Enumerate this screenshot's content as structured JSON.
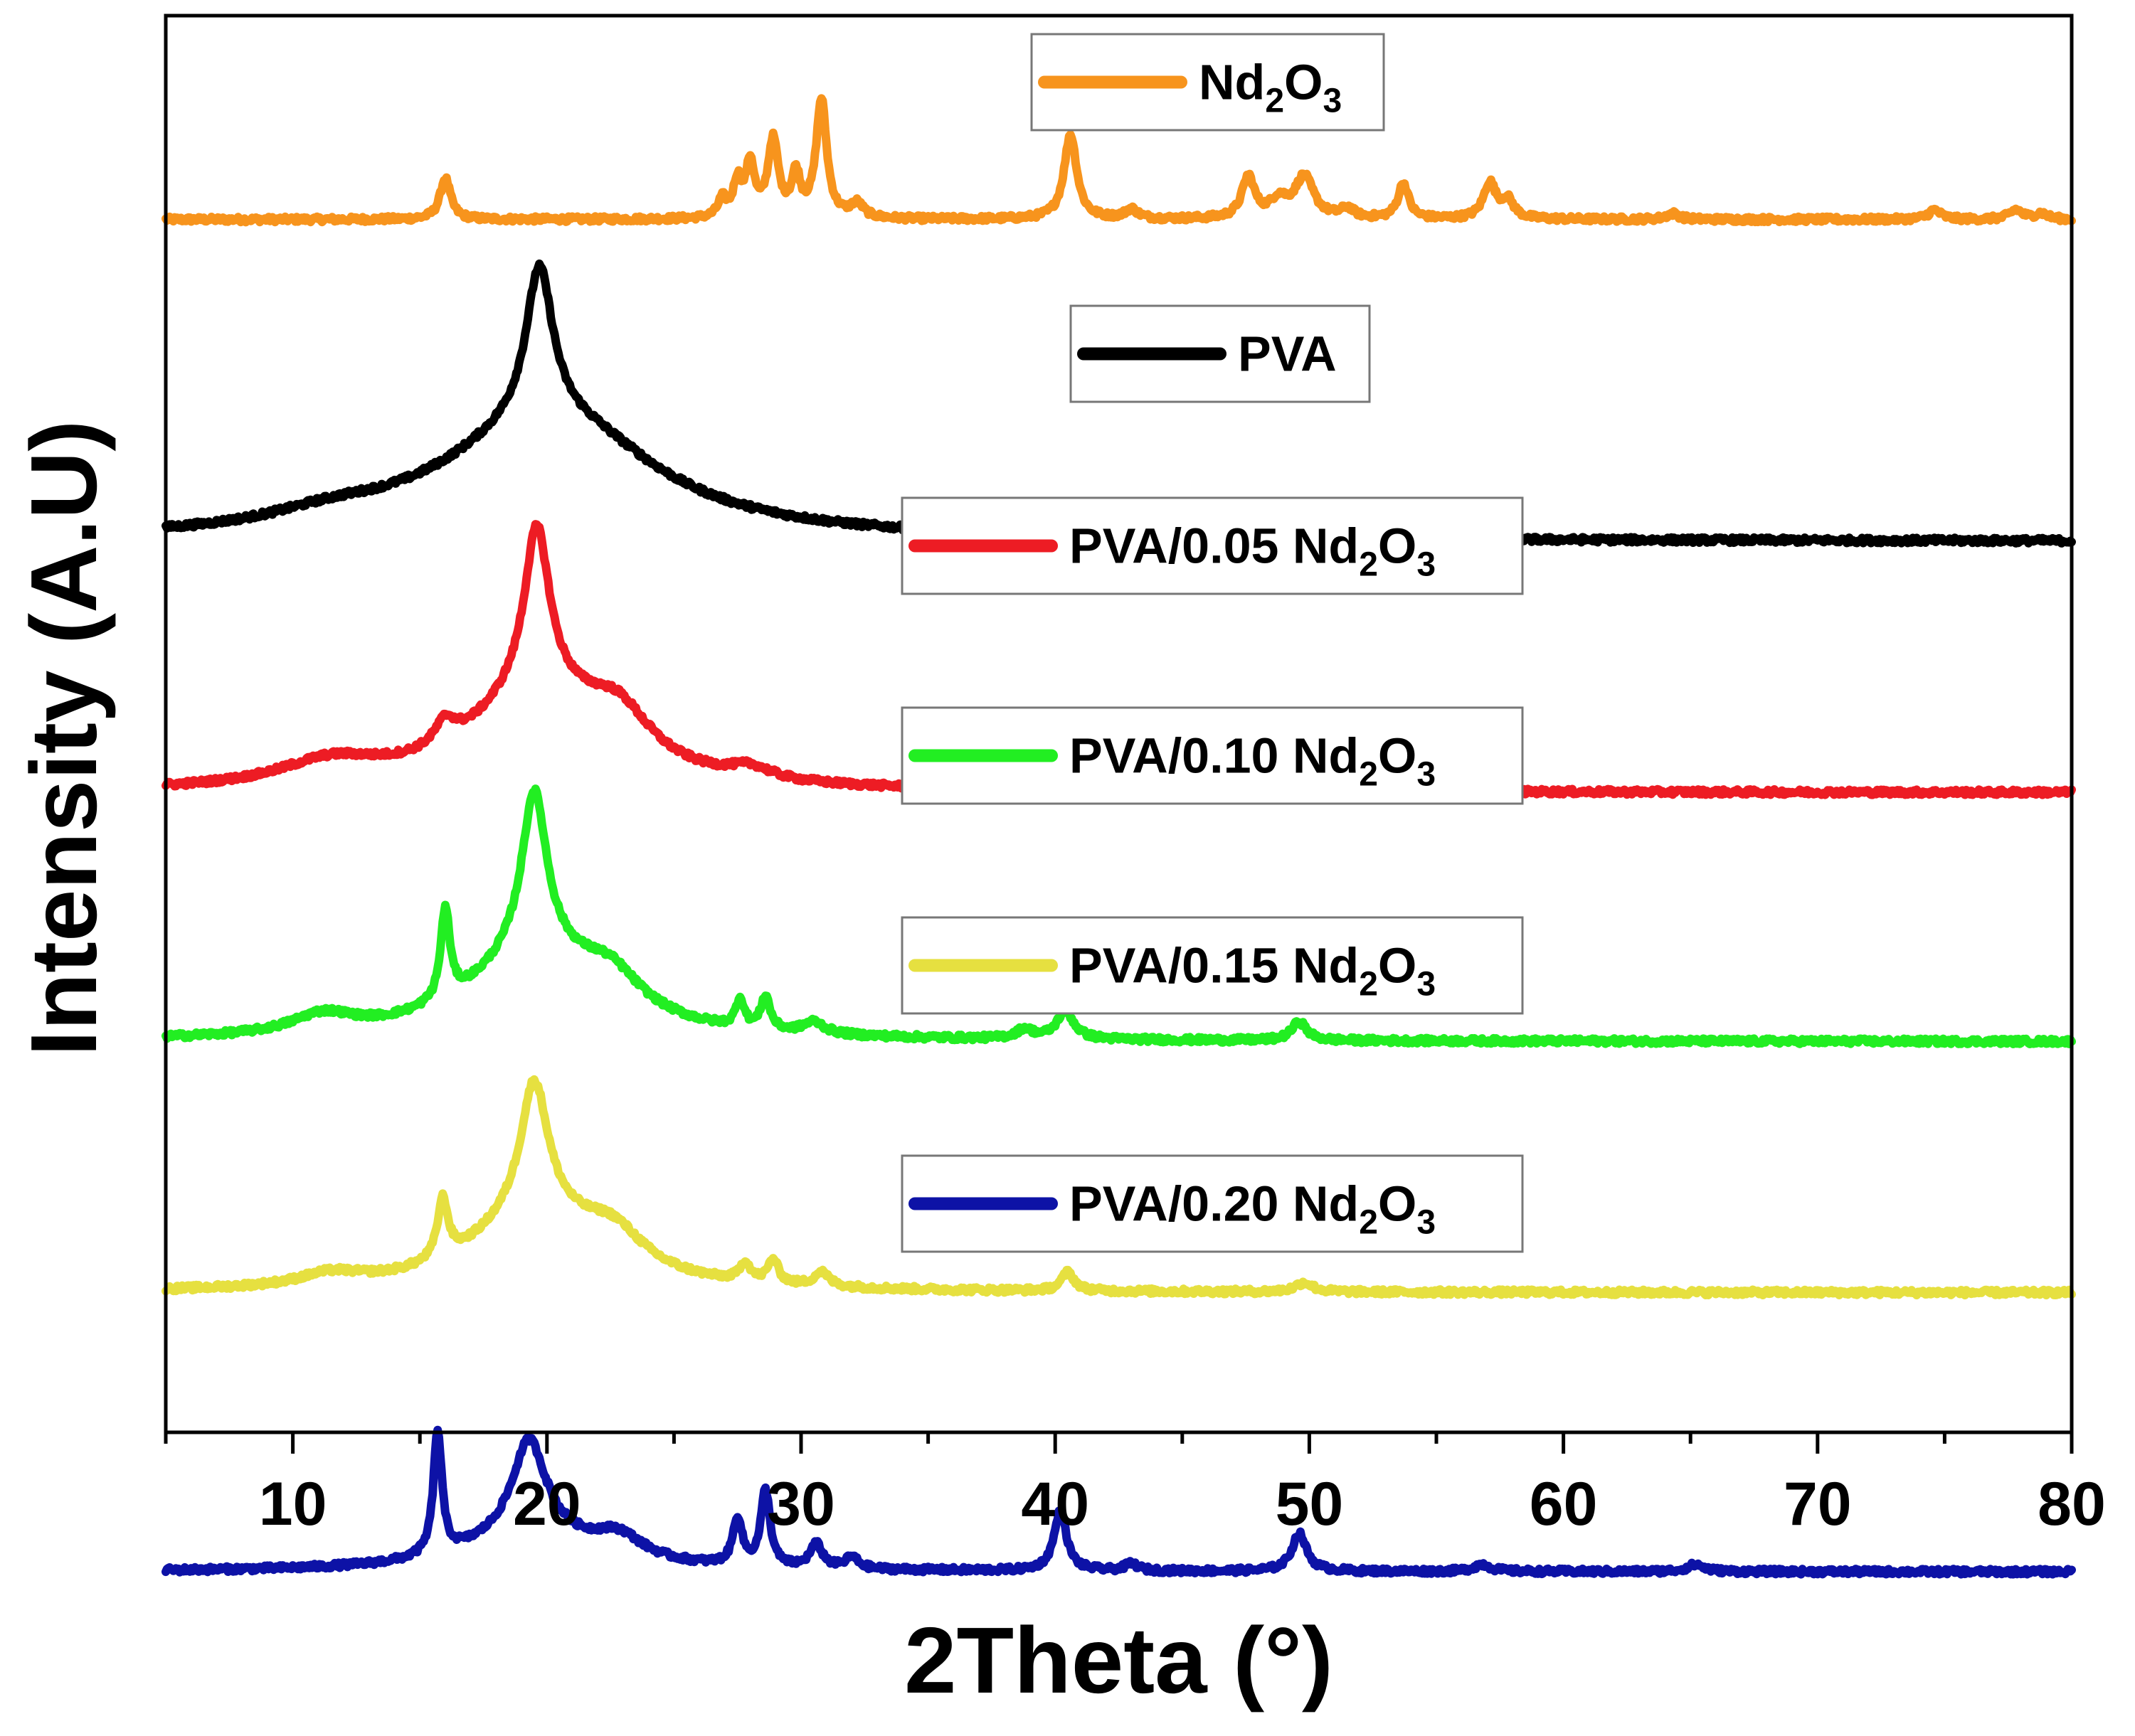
{
  "chart_data": {
    "type": "line",
    "title": "",
    "xlabel": "2Theta (°)",
    "ylabel": "Intensity (A.U)",
    "xlim": [
      5,
      80
    ],
    "ylim": [
      0,
      6.6
    ],
    "xticks": [
      10,
      20,
      30,
      40,
      50,
      60,
      70,
      80
    ],
    "legend_placement": "inline above each curve",
    "series": [
      {
        "name": "Nd2O3",
        "label": {
          "prefix": "Nd",
          "sub1": "2",
          "mid": "O",
          "sub2": "3"
        },
        "color": "#f7941d",
        "offset": 5.65,
        "scale": 0.55,
        "baseline": 0.0,
        "peaks": [
          [
            16.0,
            0.35,
            0.25
          ],
          [
            26.9,
            0.15,
            0.2
          ],
          [
            27.5,
            0.3,
            0.2
          ],
          [
            28.0,
            0.45,
            0.2
          ],
          [
            28.9,
            0.65,
            0.25
          ],
          [
            29.8,
            0.35,
            0.2
          ],
          [
            30.8,
            1.0,
            0.25
          ],
          [
            32.2,
            0.12,
            0.3
          ],
          [
            40.6,
            0.72,
            0.3
          ],
          [
            43.0,
            0.08,
            0.3
          ],
          [
            47.6,
            0.35,
            0.3
          ],
          [
            48.8,
            0.15,
            0.4
          ],
          [
            49.8,
            0.35,
            0.45
          ],
          [
            51.5,
            0.08,
            0.3
          ],
          [
            53.7,
            0.3,
            0.25
          ],
          [
            57.1,
            0.3,
            0.3
          ],
          [
            57.8,
            0.15,
            0.3
          ],
          [
            64.3,
            0.05,
            0.3
          ],
          [
            74.6,
            0.08,
            0.3
          ],
          [
            77.8,
            0.08,
            0.3
          ],
          [
            78.8,
            0.05,
            0.3
          ]
        ]
      },
      {
        "name": "PVA",
        "label": {
          "prefix": "PVA"
        },
        "color": "#000000",
        "offset": 4.15,
        "scale": 1.15,
        "baseline": 0.0,
        "peaks": [
          [
            19.7,
            0.62,
            0.65
          ],
          [
            19.6,
            0.42,
            5.0
          ],
          [
            22.0,
            0.1,
            3.5
          ],
          [
            11.5,
            0.05,
            3.0
          ],
          [
            40.5,
            0.03,
            1.5
          ]
        ]
      },
      {
        "name": "PVA/0.05 Nd2O3",
        "label": {
          "prefix": "PVA/0.05 Nd",
          "sub1": "2",
          "mid": "O",
          "sub2": "3"
        },
        "color": "#ed1c24",
        "offset": 2.98,
        "scale": 1.1,
        "baseline": 0.0,
        "peaks": [
          [
            19.6,
            0.68,
            0.6
          ],
          [
            19.6,
            0.4,
            3.2
          ],
          [
            22.8,
            0.2,
            1.6
          ],
          [
            11.5,
            0.1,
            2.5
          ],
          [
            16.0,
            0.1,
            0.5
          ],
          [
            28.0,
            0.05,
            1.0
          ],
          [
            40.6,
            0.05,
            1.0
          ],
          [
            50.0,
            0.02,
            1.5
          ]
        ]
      },
      {
        "name": "PVA/0.10 Nd2O3",
        "label": {
          "prefix": "PVA/0.10 Nd",
          "sub1": "2",
          "mid": "O",
          "sub2": "3"
        },
        "color": "#22ee22",
        "offset": 1.82,
        "scale": 1.1,
        "baseline": 0.0,
        "peaks": [
          [
            19.5,
            0.68,
            0.6
          ],
          [
            19.5,
            0.35,
            3.2
          ],
          [
            22.5,
            0.15,
            1.5
          ],
          [
            16.0,
            0.38,
            0.22
          ],
          [
            11.2,
            0.08,
            1.5
          ],
          [
            27.6,
            0.12,
            0.2
          ],
          [
            28.6,
            0.14,
            0.22
          ],
          [
            30.5,
            0.05,
            0.5
          ],
          [
            40.4,
            0.12,
            0.4
          ],
          [
            38.8,
            0.04,
            0.4
          ],
          [
            49.6,
            0.08,
            0.35
          ]
        ]
      },
      {
        "name": "PVA/0.15 Nd2O3",
        "label": {
          "prefix": "PVA/0.15 Nd",
          "sub1": "2",
          "mid": "O",
          "sub2": "3"
        },
        "color": "#e6e040",
        "offset": 0.65,
        "scale": 1.1,
        "baseline": 0.0,
        "peaks": [
          [
            19.5,
            0.55,
            0.65
          ],
          [
            19.5,
            0.32,
            3.0
          ],
          [
            22.6,
            0.15,
            1.5
          ],
          [
            15.9,
            0.25,
            0.25
          ],
          [
            11.5,
            0.05,
            1.5
          ],
          [
            27.8,
            0.08,
            0.25
          ],
          [
            28.9,
            0.1,
            0.25
          ],
          [
            30.8,
            0.06,
            0.35
          ],
          [
            40.5,
            0.08,
            0.3
          ],
          [
            49.8,
            0.04,
            0.4
          ]
        ]
      },
      {
        "name": "PVA/0.20 Nd2O3",
        "label": {
          "prefix": "PVA/0.20 Nd",
          "sub1": "2",
          "mid": "O",
          "sub2": "3"
        },
        "color": "#0d12a6",
        "offset": -0.65,
        "scale": 1.1,
        "baseline": 0.0,
        "peaks": [
          [
            15.7,
            0.52,
            0.2
          ],
          [
            19.3,
            0.4,
            0.8
          ],
          [
            19.3,
            0.15,
            3.0
          ],
          [
            22.8,
            0.1,
            1.2
          ],
          [
            27.5,
            0.2,
            0.22
          ],
          [
            28.6,
            0.32,
            0.22
          ],
          [
            30.6,
            0.1,
            0.3
          ],
          [
            32.0,
            0.05,
            0.3
          ],
          [
            40.2,
            0.25,
            0.3
          ],
          [
            49.6,
            0.16,
            0.35
          ],
          [
            43.0,
            0.03,
            0.3
          ],
          [
            56.8,
            0.03,
            0.4
          ],
          [
            65.2,
            0.03,
            0.4
          ]
        ]
      }
    ]
  }
}
